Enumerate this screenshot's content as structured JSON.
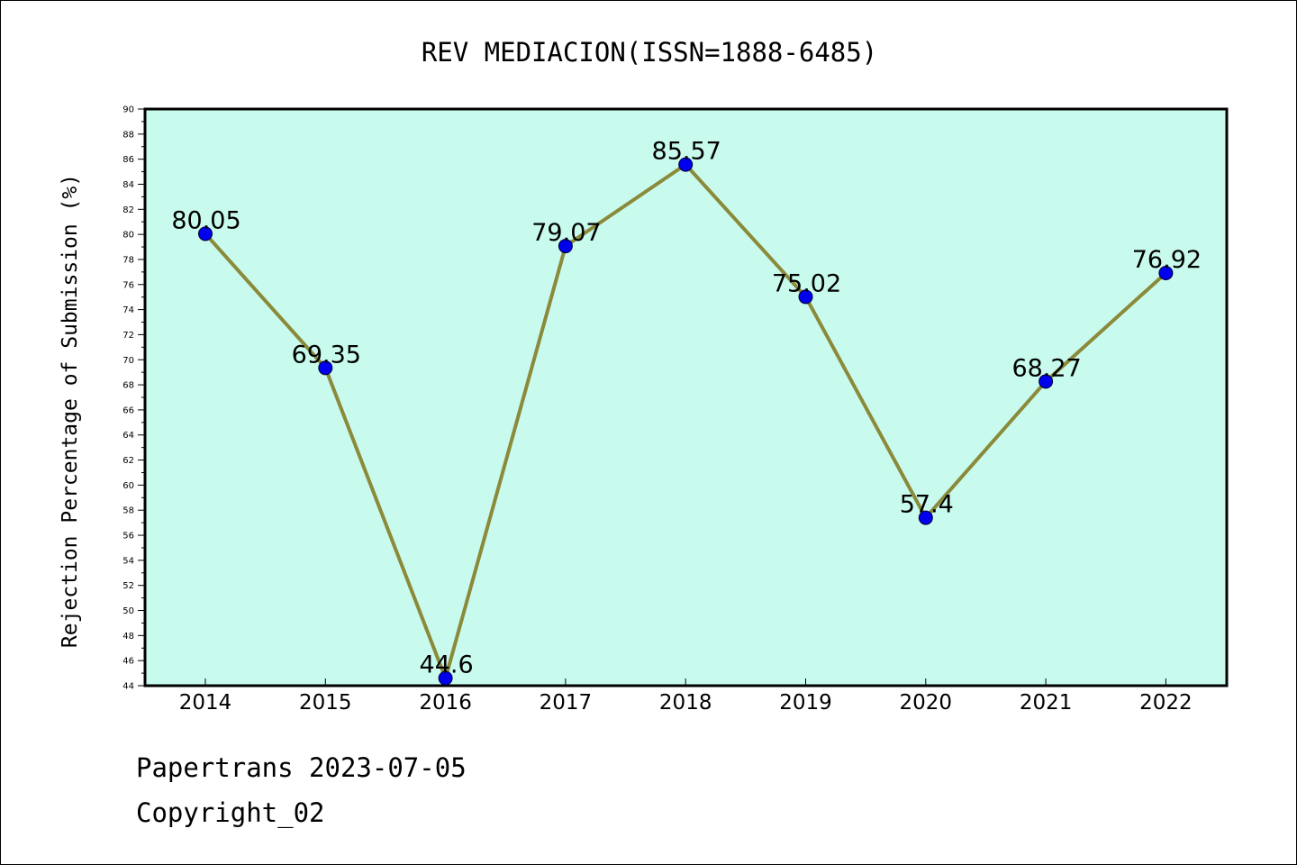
{
  "chart_data": {
    "type": "line",
    "title": "REV MEDIACION(ISSN=1888-6485)",
    "xlabel": "",
    "ylabel": "Rejection Percentage of Submission (%)",
    "categories": [
      "2014",
      "2015",
      "2016",
      "2017",
      "2018",
      "2019",
      "2020",
      "2021",
      "2022"
    ],
    "values": [
      80.05,
      69.35,
      44.6,
      79.07,
      85.57,
      75.02,
      57.4,
      68.27,
      76.92
    ],
    "data_labels": [
      "80.05",
      "69.35",
      "44.6",
      "79.07",
      "85.57",
      "75.02",
      "57.4",
      "68.27",
      "76.92"
    ],
    "ylim": [
      44,
      90
    ],
    "yticks": [
      44,
      46,
      48,
      50,
      52,
      54,
      56,
      58,
      60,
      62,
      64,
      66,
      68,
      70,
      72,
      74,
      76,
      78,
      80,
      82,
      84,
      86,
      88,
      90
    ],
    "grid": false,
    "legend": "none",
    "colors": {
      "plot_background": "#c8fbee",
      "line": "#8b8a3a",
      "marker": "#0000ee",
      "axis": "#000000"
    }
  },
  "footer": {
    "source": "Papertrans 2023-07-05",
    "copyright": "Copyright_02"
  }
}
